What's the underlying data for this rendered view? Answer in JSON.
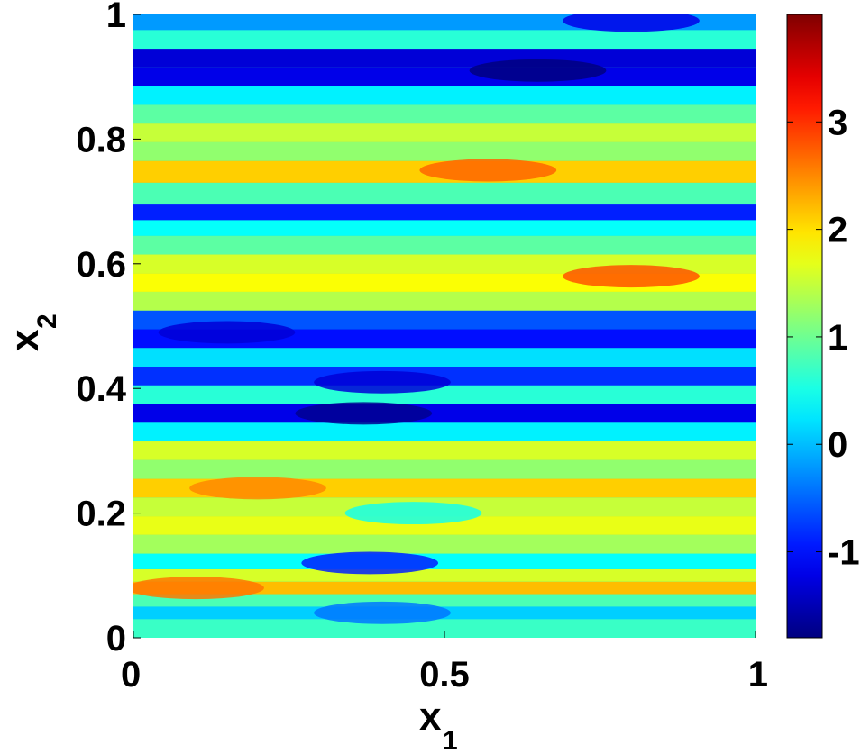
{
  "chart_data": {
    "type": "heatmap",
    "title": "",
    "xlabel": "x",
    "xlabel_sub": "1",
    "ylabel": "x",
    "ylabel_sub": "2",
    "xlim": [
      0,
      1
    ],
    "ylim": [
      0,
      1
    ],
    "xticks": [
      0,
      0.5,
      1
    ],
    "xtick_labels": [
      "0",
      "0.5",
      "1"
    ],
    "yticks": [
      0,
      0.2,
      0.4,
      0.6,
      0.8,
      1
    ],
    "ytick_labels": [
      "0",
      "0.2",
      "0.4",
      "0.6",
      "0.8",
      "1"
    ],
    "colormap": "jet",
    "colorbar": {
      "range": [
        -1.8,
        4.0
      ],
      "ticks": [
        -1,
        0,
        1,
        2,
        3
      ],
      "tick_labels": [
        "-1",
        "0",
        "1",
        "2",
        "3"
      ],
      "placement": "right"
    },
    "grid": false,
    "field_description_bands": [
      {
        "x2": 0.02,
        "value": 0.7
      },
      {
        "x2": 0.04,
        "value": 0.1
      },
      {
        "x2": 0.06,
        "value": 0.8
      },
      {
        "x2": 0.08,
        "value": 2.2
      },
      {
        "x2": 0.1,
        "value": 1.6
      },
      {
        "x2": 0.12,
        "value": 0.4
      },
      {
        "x2": 0.15,
        "value": 1.3
      },
      {
        "x2": 0.18,
        "value": 1.7
      },
      {
        "x2": 0.21,
        "value": 1.5
      },
      {
        "x2": 0.24,
        "value": 2.1
      },
      {
        "x2": 0.27,
        "value": 1.2
      },
      {
        "x2": 0.3,
        "value": 1.6
      },
      {
        "x2": 0.33,
        "value": 0.3
      },
      {
        "x2": 0.36,
        "value": -1.2
      },
      {
        "x2": 0.39,
        "value": 0.6
      },
      {
        "x2": 0.42,
        "value": -0.8
      },
      {
        "x2": 0.45,
        "value": 0.2
      },
      {
        "x2": 0.48,
        "value": -1.0
      },
      {
        "x2": 0.51,
        "value": -0.6
      },
      {
        "x2": 0.54,
        "value": 1.4
      },
      {
        "x2": 0.57,
        "value": 1.8
      },
      {
        "x2": 0.6,
        "value": 1.6
      },
      {
        "x2": 0.63,
        "value": 0.9
      },
      {
        "x2": 0.66,
        "value": 0.4
      },
      {
        "x2": 0.68,
        "value": -0.9
      },
      {
        "x2": 0.71,
        "value": 0.8
      },
      {
        "x2": 0.75,
        "value": 2.1
      },
      {
        "x2": 0.78,
        "value": 1.2
      },
      {
        "x2": 0.81,
        "value": 1.5
      },
      {
        "x2": 0.84,
        "value": 0.9
      },
      {
        "x2": 0.87,
        "value": 0.3
      },
      {
        "x2": 0.9,
        "value": -1.2
      },
      {
        "x2": 0.93,
        "value": -1.3
      },
      {
        "x2": 0.96,
        "value": 0.6
      },
      {
        "x2": 0.99,
        "value": -0.2
      }
    ],
    "field_description_blobs": [
      {
        "x1": 0.37,
        "x2": 0.36,
        "value": -1.7
      },
      {
        "x1": 0.65,
        "x2": 0.91,
        "value": -1.8
      },
      {
        "x1": 0.8,
        "x2": 0.99,
        "value": -1.2
      },
      {
        "x1": 0.57,
        "x2": 0.75,
        "value": 2.7
      },
      {
        "x1": 0.8,
        "x2": 0.58,
        "value": 2.8
      },
      {
        "x1": 0.2,
        "x2": 0.24,
        "value": 2.5
      },
      {
        "x1": 0.1,
        "x2": 0.08,
        "value": 2.6
      },
      {
        "x1": 0.15,
        "x2": 0.49,
        "value": -1.3
      },
      {
        "x1": 0.4,
        "x2": 0.41,
        "value": -1.3
      },
      {
        "x1": 0.38,
        "x2": 0.12,
        "value": -0.9
      },
      {
        "x1": 0.4,
        "x2": 0.04,
        "value": -0.4
      },
      {
        "x1": 0.45,
        "x2": 0.2,
        "value": 0.5
      }
    ]
  }
}
